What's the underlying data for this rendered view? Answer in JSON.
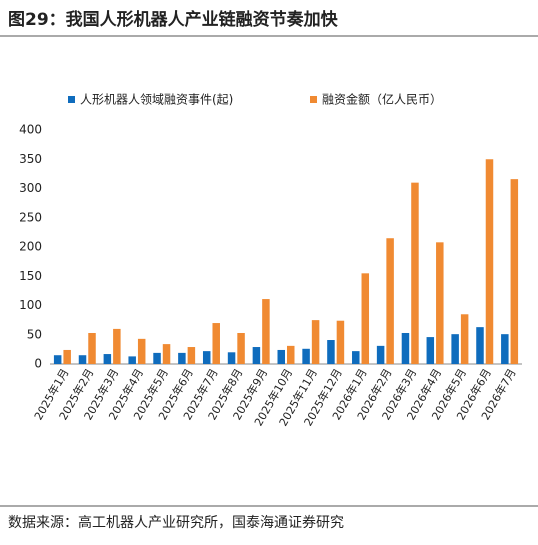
{
  "chart_data": {
    "type": "bar",
    "title": "图29：我国人形机器人产业链融资节奏加快",
    "source": "数据来源：高工机器人产业研究所，国泰海通证券研究",
    "categories": [
      "2025年1月",
      "2025年2月",
      "2025年3月",
      "2025年4月",
      "2025年5月",
      "2025年6月",
      "2025年7月",
      "2025年8月",
      "2025年9月",
      "2025年10月",
      "2025年11月",
      "2025年12月",
      "2026年1月",
      "2026年2月",
      "2026年3月",
      "2026年4月",
      "2026年5月",
      "2026年6月",
      "2026年7月"
    ],
    "series": [
      {
        "name": "人形机器人领域融资事件(起)",
        "color": "#0f6cbd",
        "values": [
          15,
          15,
          17,
          13,
          19,
          19,
          22,
          20,
          29,
          24,
          26,
          41,
          22,
          31,
          53,
          46,
          51,
          63,
          51
        ]
      },
      {
        "name": "融资金额（亿人民币）",
        "color": "#f08a32",
        "values": [
          24,
          53,
          60,
          43,
          34,
          29,
          70,
          53,
          111,
          31,
          75,
          74,
          155,
          215,
          310,
          208,
          85,
          350,
          316
        ]
      }
    ],
    "ylim": [
      0,
      400
    ],
    "yticks": [
      0,
      50,
      100,
      150,
      200,
      250,
      300,
      350,
      400
    ],
    "grid": false
  }
}
